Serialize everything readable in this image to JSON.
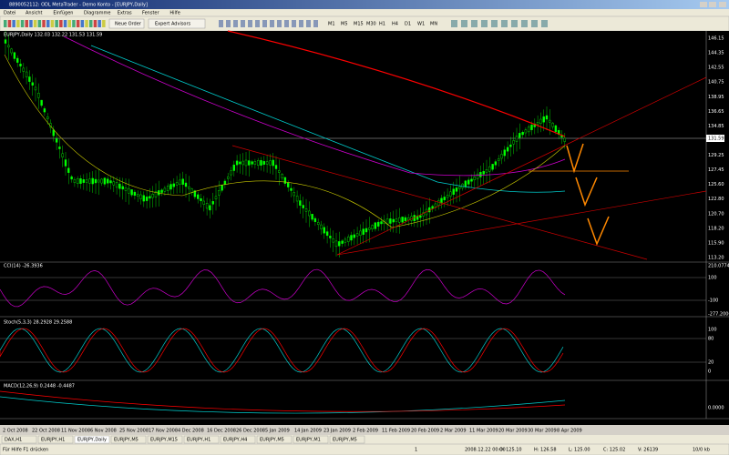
{
  "window": {
    "title": "8890052112: ODL MetaTrader - Demo Konto - [EURJPY,Daily]"
  },
  "menu": [
    "Datei",
    "Ansicht",
    "Einfügen",
    "Diagramme",
    "Extras",
    "Fenster",
    "Hilfe"
  ],
  "toolbar": {
    "buttons": [
      "Neue Order",
      "Expert Advisors"
    ],
    "timeframes": [
      "M1",
      "M5",
      "M15",
      "M30",
      "H1",
      "H4",
      "D1",
      "W1",
      "MN"
    ]
  },
  "chart": {
    "label": "EURJPY,Daily 132.03 132.22 131.53 131.59",
    "price_axis": [
      "146.15",
      "144.35",
      "142.55",
      "140.75",
      "138.95",
      "136.65",
      "134.85",
      "131.59",
      "129.25",
      "127.45",
      "125.60",
      "122.80",
      "120.70",
      "118.20",
      "115.90",
      "113.20"
    ],
    "current_price": "131.59",
    "cci": {
      "label": "CCI(14) -26.3936",
      "axis": [
        "210.0774",
        "100",
        "-100",
        "-277.2000"
      ]
    },
    "stoch": {
      "label": "Stoch(5,3,3) 28.2928 29.2588",
      "axis": [
        "100",
        "80",
        "20",
        "0"
      ]
    },
    "macd": {
      "label": "MACD(12,26,9) 0.2448 -0.4487",
      "axis": [
        "0.0000"
      ]
    },
    "dates": [
      "2 Oct 2008",
      "22 Oct 2008",
      "11 Nov 2008",
      "6 Nov 2008",
      "25 Nov 2008",
      "17 Nov 2008",
      "4 Dec 2008",
      "16 Dec 2008",
      "26 Dec 2008",
      "5 Jan 2009",
      "14 Jan 2009",
      "23 Jan 2009",
      "2 Feb 2009",
      "11 Feb 2009",
      "20 Feb 2009",
      "2 Mar 2009",
      "11 Mar 2009",
      "20 Mar 2009",
      "30 Mar 2009",
      "8 Apr 2009"
    ]
  },
  "tabs": {
    "items": [
      "DAX,H1",
      "EURJPY,H1",
      "EURJPY,Daily",
      "EURJPY,M5",
      "EURJPY,M15",
      "EURJPY,H1",
      "EURJPY,H4",
      "EURJPY,M5",
      "EURJPY,M1",
      "EURJPY,M5"
    ],
    "active": 2
  },
  "status": {
    "help": "Für Hilfe F1 drücken",
    "page": "1",
    "fields": [
      "2008.12.22 00:00",
      "O: 125.10",
      "H: 126.58",
      "L: 125.00",
      "C: 125.02",
      "V: 26139"
    ],
    "traffic": "10/0 kb"
  }
}
